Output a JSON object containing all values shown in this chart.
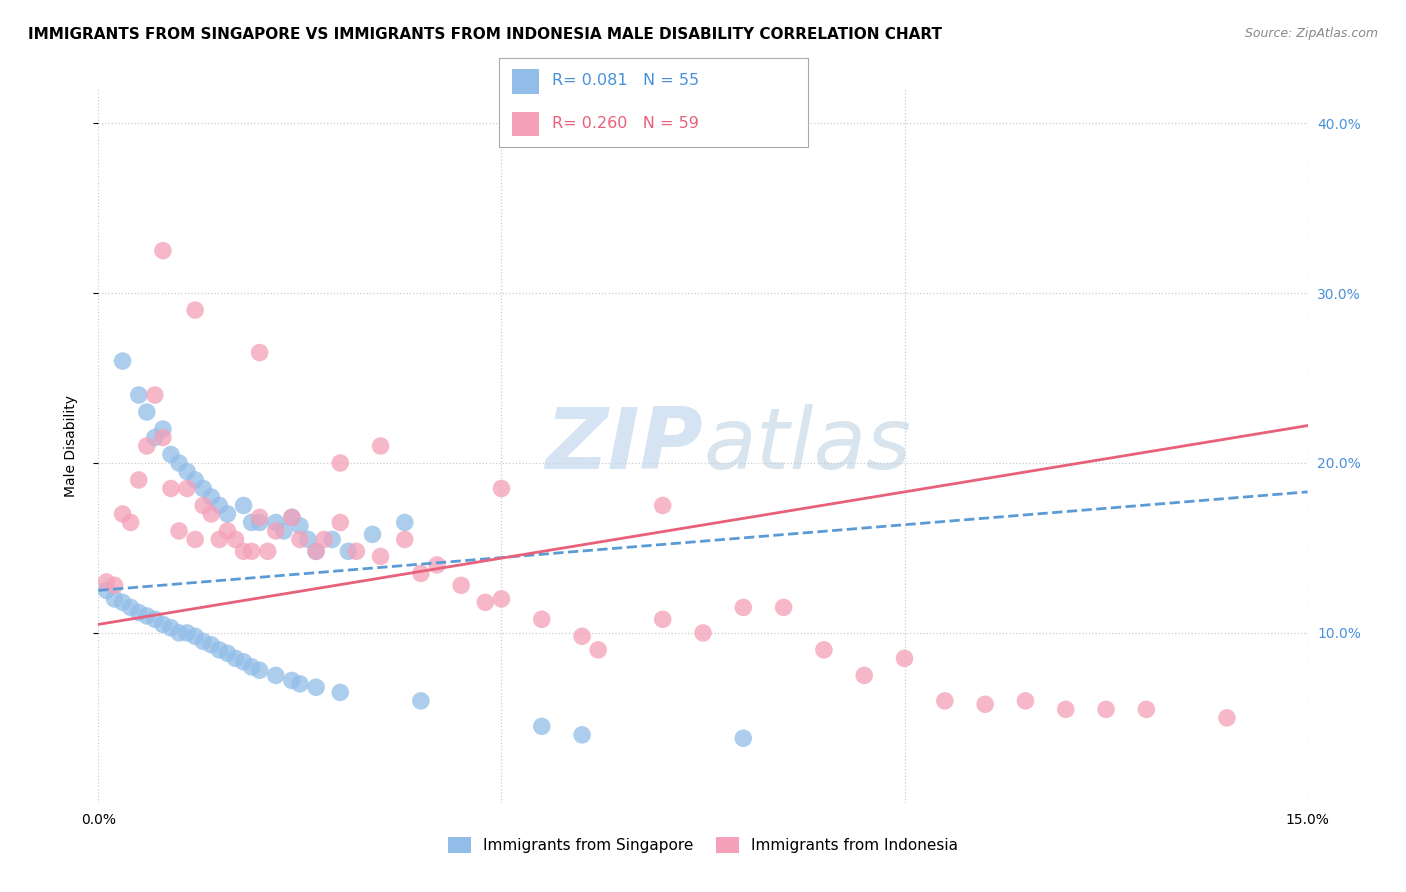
{
  "title": "IMMIGRANTS FROM SINGAPORE VS IMMIGRANTS FROM INDONESIA MALE DISABILITY CORRELATION CHART",
  "source": "Source: ZipAtlas.com",
  "ylabel": "Male Disability",
  "xlim": [
    0.0,
    0.15
  ],
  "ylim": [
    0.0,
    0.42
  ],
  "R1": 0.081,
  "N1": 55,
  "R2": 0.26,
  "N2": 59,
  "label1": "Immigrants from Singapore",
  "label2": "Immigrants from Indonesia",
  "series1_color": "#92bde8",
  "series2_color": "#f4a0b8",
  "line1_color": "#5b9bd5",
  "line2_color": "#e8607a",
  "watermark_color": "#c5d8ee",
  "title_fontsize": 11,
  "axis_label_fontsize": 10,
  "tick_fontsize": 10,
  "scatter1_x": [
    0.003,
    0.005,
    0.006,
    0.007,
    0.008,
    0.009,
    0.01,
    0.011,
    0.012,
    0.013,
    0.014,
    0.015,
    0.016,
    0.018,
    0.019,
    0.02,
    0.022,
    0.023,
    0.024,
    0.025,
    0.026,
    0.027,
    0.029,
    0.031,
    0.034,
    0.038,
    0.001,
    0.002,
    0.003,
    0.004,
    0.005,
    0.006,
    0.007,
    0.008,
    0.009,
    0.01,
    0.011,
    0.012,
    0.013,
    0.014,
    0.015,
    0.016,
    0.017,
    0.018,
    0.019,
    0.02,
    0.022,
    0.024,
    0.025,
    0.027,
    0.03,
    0.04,
    0.055,
    0.06,
    0.08
  ],
  "scatter1_y": [
    0.26,
    0.24,
    0.23,
    0.215,
    0.22,
    0.205,
    0.2,
    0.195,
    0.19,
    0.185,
    0.18,
    0.175,
    0.17,
    0.175,
    0.165,
    0.165,
    0.165,
    0.16,
    0.168,
    0.163,
    0.155,
    0.148,
    0.155,
    0.148,
    0.158,
    0.165,
    0.125,
    0.12,
    0.118,
    0.115,
    0.112,
    0.11,
    0.108,
    0.105,
    0.103,
    0.1,
    0.1,
    0.098,
    0.095,
    0.093,
    0.09,
    0.088,
    0.085,
    0.083,
    0.08,
    0.078,
    0.075,
    0.072,
    0.07,
    0.068,
    0.065,
    0.06,
    0.045,
    0.04,
    0.038
  ],
  "scatter2_x": [
    0.001,
    0.002,
    0.003,
    0.004,
    0.005,
    0.006,
    0.007,
    0.008,
    0.009,
    0.01,
    0.011,
    0.012,
    0.013,
    0.014,
    0.015,
    0.016,
    0.017,
    0.018,
    0.019,
    0.02,
    0.021,
    0.022,
    0.024,
    0.025,
    0.027,
    0.028,
    0.03,
    0.032,
    0.035,
    0.038,
    0.04,
    0.042,
    0.045,
    0.048,
    0.05,
    0.055,
    0.06,
    0.062,
    0.07,
    0.075,
    0.08,
    0.085,
    0.09,
    0.095,
    0.1,
    0.105,
    0.11,
    0.115,
    0.12,
    0.125,
    0.13,
    0.14,
    0.008,
    0.012,
    0.02,
    0.03,
    0.035,
    0.05,
    0.07
  ],
  "scatter2_y": [
    0.13,
    0.128,
    0.17,
    0.165,
    0.19,
    0.21,
    0.24,
    0.215,
    0.185,
    0.16,
    0.185,
    0.155,
    0.175,
    0.17,
    0.155,
    0.16,
    0.155,
    0.148,
    0.148,
    0.168,
    0.148,
    0.16,
    0.168,
    0.155,
    0.148,
    0.155,
    0.165,
    0.148,
    0.145,
    0.155,
    0.135,
    0.14,
    0.128,
    0.118,
    0.12,
    0.108,
    0.098,
    0.09,
    0.108,
    0.1,
    0.115,
    0.115,
    0.09,
    0.075,
    0.085,
    0.06,
    0.058,
    0.06,
    0.055,
    0.055,
    0.055,
    0.05,
    0.325,
    0.29,
    0.265,
    0.2,
    0.21,
    0.185,
    0.175
  ]
}
